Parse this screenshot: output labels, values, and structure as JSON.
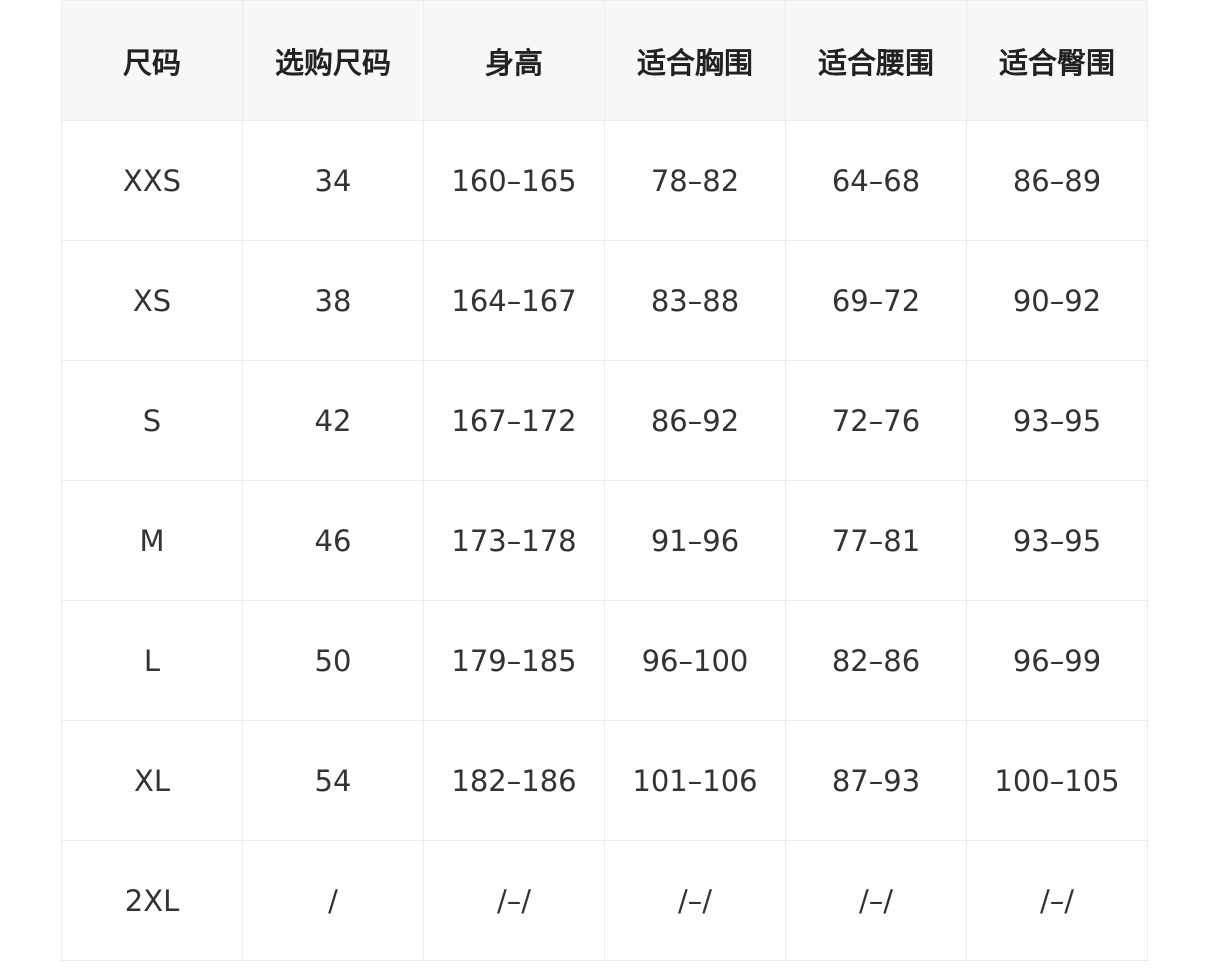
{
  "table": {
    "header": [
      "尺码",
      "选购尺码",
      "身高",
      "适合胸围",
      "适合腰围",
      "适合臀围"
    ],
    "rows": [
      [
        "XXS",
        "34",
        "160–165",
        "78–82",
        "64–68",
        "86–89"
      ],
      [
        "XS",
        "38",
        "164–167",
        "83–88",
        "69–72",
        "90–92"
      ],
      [
        "S",
        "42",
        "167–172",
        "86–92",
        "72–76",
        "93–95"
      ],
      [
        "M",
        "46",
        "173–178",
        "91–96",
        "77–81",
        "93–95"
      ],
      [
        "L",
        "50",
        "179–185",
        "96–100",
        "82–86",
        "96–99"
      ],
      [
        "XL",
        "54",
        "182–186",
        "101–106",
        "87–93",
        "100–105"
      ],
      [
        "2XL",
        "/",
        "/–/",
        "/–/",
        "/–/",
        "/–/"
      ]
    ]
  }
}
